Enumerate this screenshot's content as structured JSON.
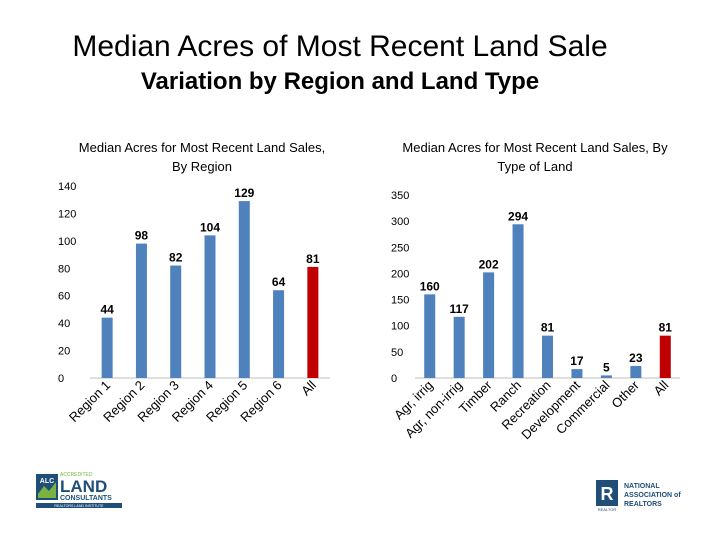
{
  "header": {
    "title": "Median Acres of Most Recent Land Sale",
    "subtitle": "Variation by Region and Land Type"
  },
  "colors": {
    "bar": "#4f81bd",
    "highlight": "#c00000",
    "axis": "#bfbfbf"
  },
  "chart_data": [
    {
      "type": "bar",
      "title": "Median Acres for Most Recent Land Sales, By Region",
      "categories": [
        "Region 1",
        "Region 2",
        "Region 3",
        "Region 4",
        "Region 5",
        "Region 6",
        "All"
      ],
      "values": [
        44,
        98,
        82,
        104,
        129,
        64,
        81
      ],
      "highlight_category": "All",
      "ylim": [
        0,
        140
      ],
      "yticks": [
        0,
        20,
        40,
        60,
        80,
        100,
        120,
        140
      ],
      "data_labels": true,
      "grid": false,
      "legend": "none"
    },
    {
      "type": "bar",
      "title": "Median Acres for Most Recent Land Sales, By Type of Land",
      "categories": [
        "Agr, irrig",
        "Agr, non-irrig",
        "Timber",
        "Ranch",
        "Recreation",
        "Development",
        "Commercial",
        "Other",
        "All"
      ],
      "values": [
        160,
        117,
        202,
        294,
        81,
        17,
        5,
        23,
        81
      ],
      "highlight_category": "All",
      "ylim": [
        0,
        350
      ],
      "yticks": [
        0,
        50,
        100,
        150,
        200,
        250,
        300,
        350
      ],
      "data_labels": true,
      "grid": false,
      "legend": "none"
    }
  ],
  "logos": {
    "alc": {
      "line1": "ACCREDITED",
      "badge": "ALC",
      "word": "LAND",
      "line3": "CONSULTANTS",
      "tagline": "REALTORS LAND INSTITUTE"
    },
    "nar": {
      "line1": "NATIONAL",
      "line2": "ASSOCIATION of",
      "line3": "REALTORS",
      "mark": "R",
      "mark_caption": "REALTOR"
    }
  }
}
